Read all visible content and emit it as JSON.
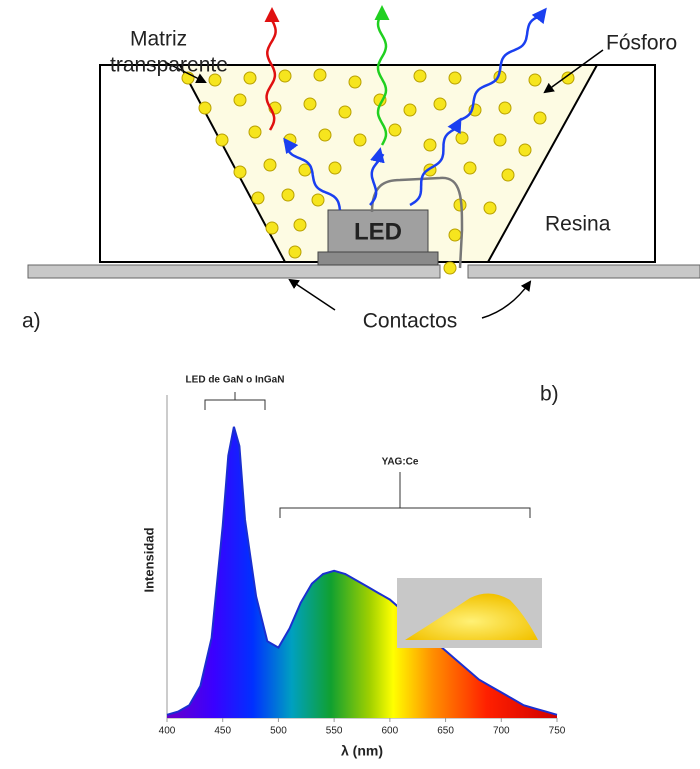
{
  "diagram": {
    "matrix_label": [
      "Matriz",
      "transparente"
    ],
    "phosphor_label": "Fósforo",
    "led_label": "LED",
    "resin_label": "Resina",
    "contacts_label": "Contactos",
    "panel_label": "a)"
  },
  "chart_data": {
    "type": "area",
    "panel_label": "b)",
    "xlabel": "λ (nm)",
    "ylabel": "Intensidad",
    "annotations": [
      "LED de GaN o InGaN",
      "YAG:Ce"
    ],
    "x": [
      400,
      410,
      420,
      430,
      440,
      450,
      455,
      460,
      465,
      470,
      480,
      490,
      500,
      510,
      520,
      530,
      540,
      550,
      560,
      570,
      580,
      590,
      600,
      610,
      620,
      630,
      640,
      650,
      660,
      670,
      680,
      690,
      700,
      710,
      720,
      730,
      740,
      750
    ],
    "values": [
      1,
      2,
      4,
      10,
      25,
      60,
      82,
      91,
      85,
      62,
      38,
      24,
      22,
      28,
      36,
      42,
      45,
      46,
      45,
      43,
      41,
      39,
      37,
      34,
      31,
      28,
      24,
      21,
      18,
      15,
      12,
      10,
      8,
      6,
      4,
      3,
      2,
      1
    ],
    "color": "#1a2fd0",
    "xlim": [
      400,
      750
    ],
    "xticks": [
      400,
      450,
      500,
      550,
      600,
      650,
      700,
      750
    ],
    "ylim": [
      0,
      100
    ]
  }
}
